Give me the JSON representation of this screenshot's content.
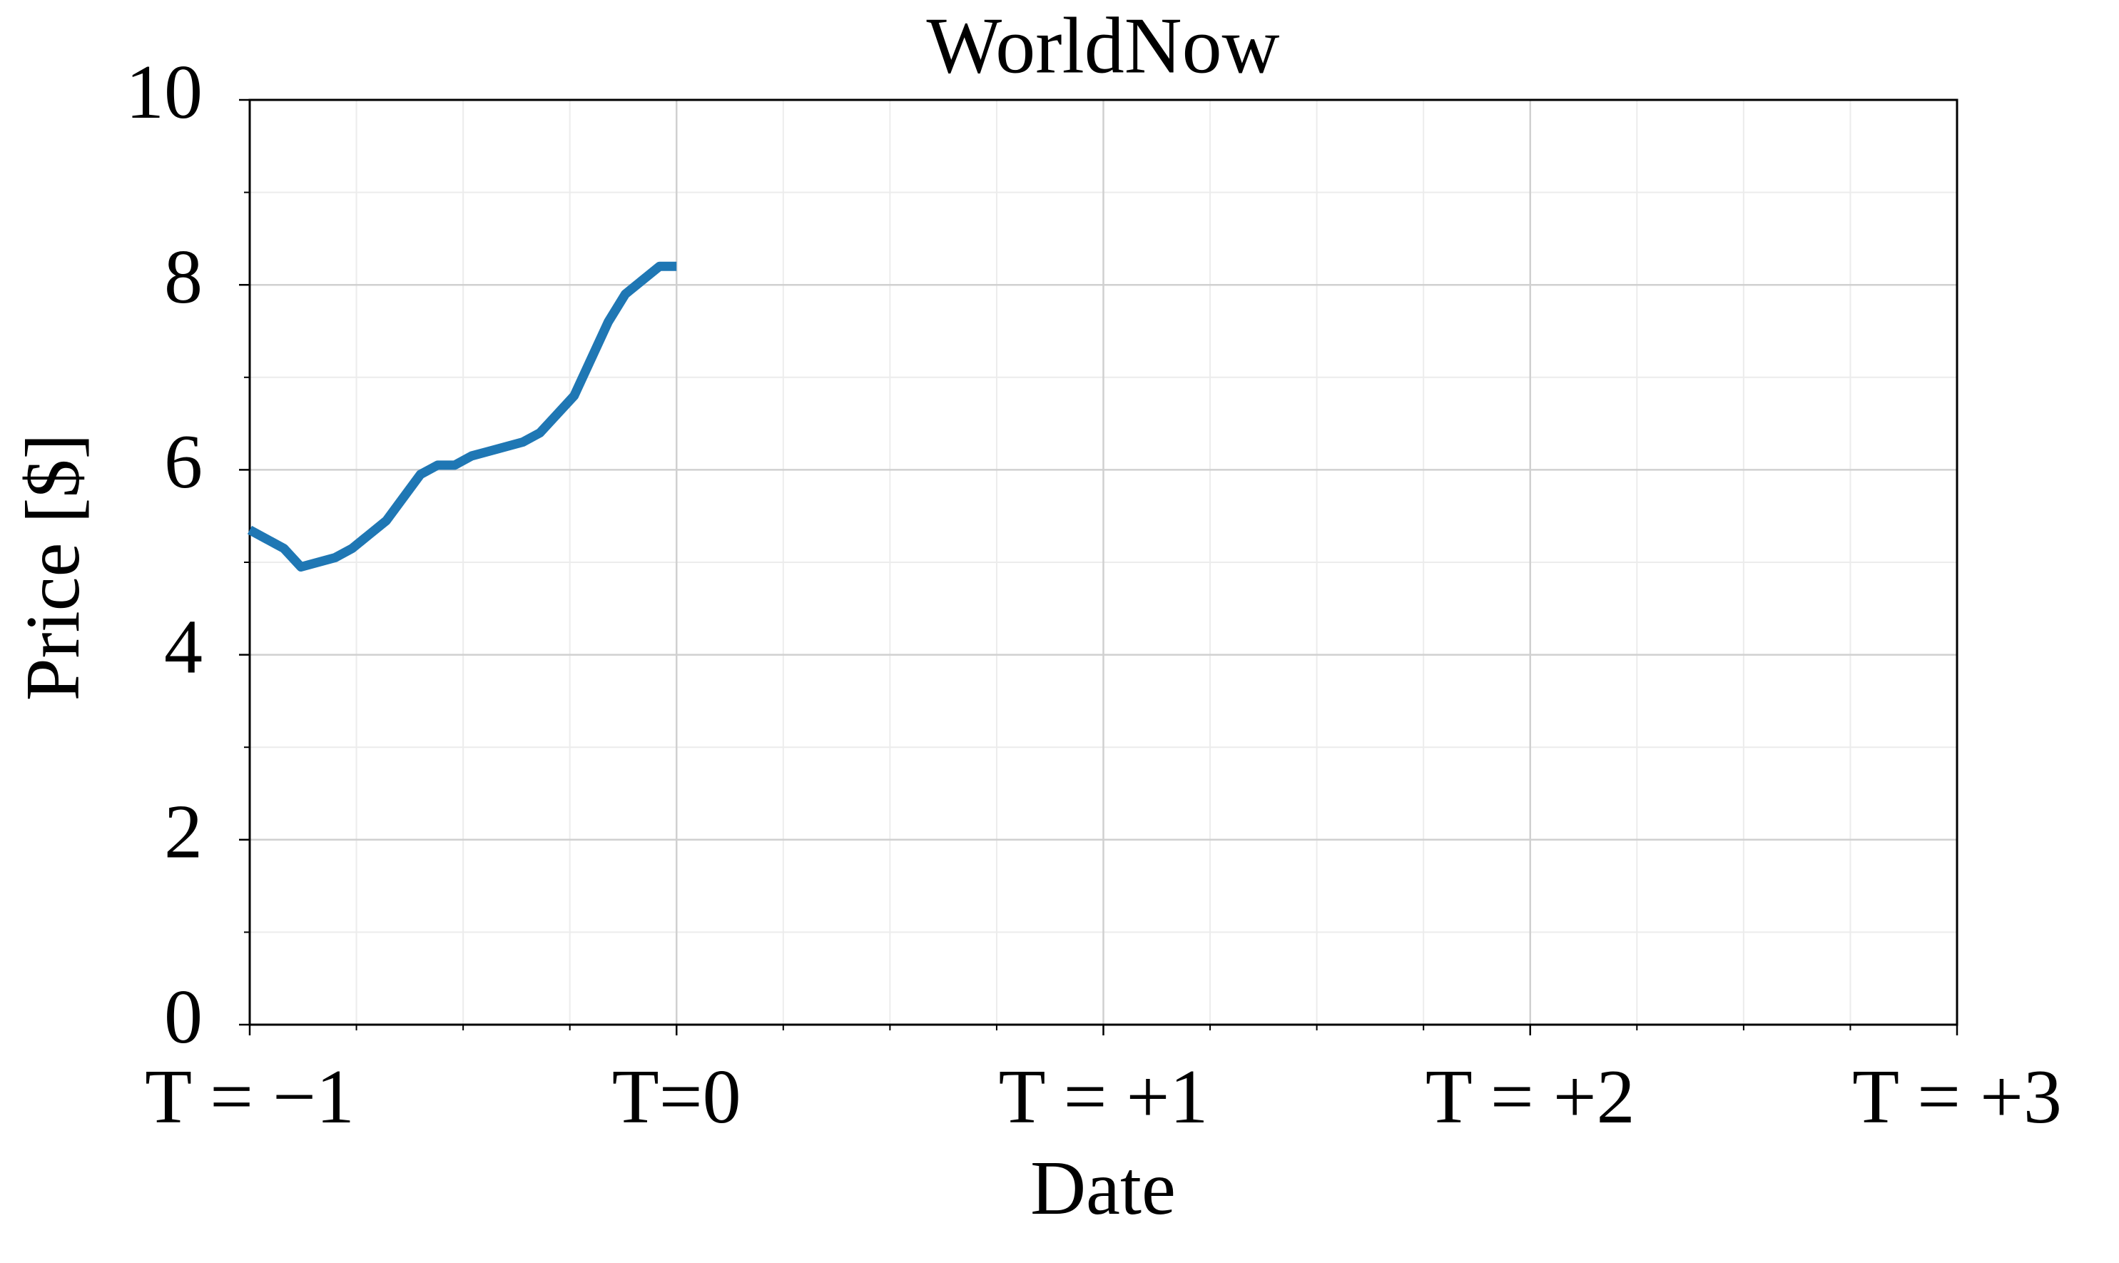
{
  "chart_data": {
    "type": "line",
    "title": "WorldNow",
    "x_label": "Date",
    "y_label": "Price [$]",
    "x": [
      -1,
      -0.96,
      -0.92,
      -0.88,
      -0.84,
      -0.8,
      -0.76,
      -0.72,
      -0.68,
      -0.64,
      -0.6,
      -0.56,
      -0.52,
      -0.48,
      -0.44,
      -0.4,
      -0.36,
      -0.32,
      -0.28,
      -0.24,
      -0.2,
      -0.16,
      -0.12,
      -0.08,
      -0.04,
      0
    ],
    "values": [
      5.35,
      5.25,
      5.15,
      4.95,
      5.0,
      5.05,
      5.15,
      5.3,
      5.45,
      5.7,
      5.95,
      6.05,
      6.05,
      6.15,
      6.2,
      6.25,
      6.3,
      6.4,
      6.6,
      6.8,
      7.2,
      7.6,
      7.9,
      8.05,
      8.2,
      8.2
    ],
    "color": "#1f77b4",
    "xlim": [
      -1,
      3
    ],
    "ylim": [
      0,
      10
    ],
    "xticks": [
      {
        "value": -1,
        "label": "T = −1"
      },
      {
        "value": 0,
        "label": "T=0"
      },
      {
        "value": 1,
        "label": "T = +1"
      },
      {
        "value": 2,
        "label": "T = +2"
      },
      {
        "value": 3,
        "label": "T = +3"
      }
    ],
    "yticks": [
      0,
      2,
      4,
      6,
      8,
      10
    ],
    "xminorticks": [
      -0.75,
      -0.5,
      -0.25,
      0.25,
      0.5,
      0.75,
      1.25,
      1.5,
      1.75,
      2.25,
      2.5,
      2.75
    ],
    "yminorticks": [
      1,
      3,
      5,
      7,
      9
    ],
    "grid": true
  }
}
